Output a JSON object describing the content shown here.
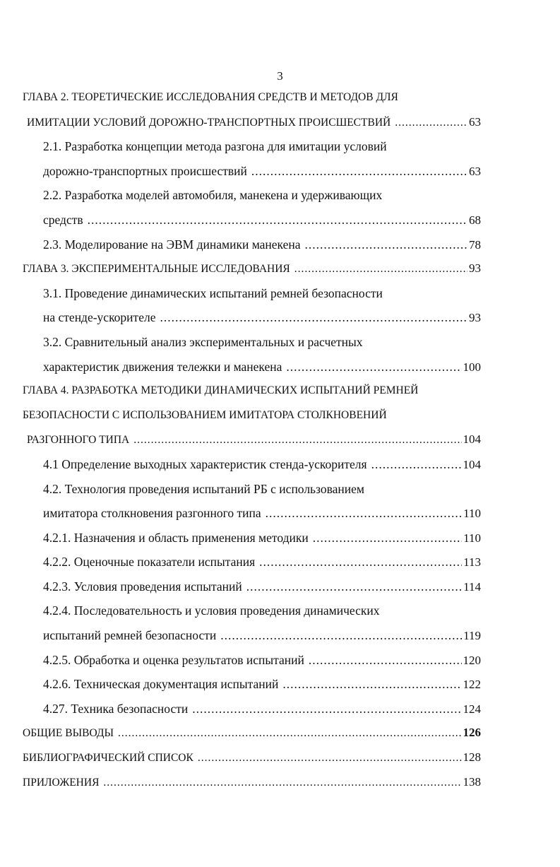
{
  "page_number": "3",
  "rows": [
    {
      "text": "ГЛАВА 2. ТЕОРЕТИЧЕСКИЕ ИССЛЕДОВАНИЯ СРЕДСТВ И МЕТОДОВ ДЛЯ",
      "level": "l0"
    },
    {
      "text": "ИМИТАЦИИ УСЛОВИЙ ДОРОЖНО-ТРАНСПОРТНЫХ ПРОИСШЕСТВИЙ",
      "page": "63",
      "level": "l0b"
    },
    {
      "text": "2.1. Разработка концепции метода разгона для имитации условий",
      "level": "l1"
    },
    {
      "text": "дорожно-транспортных происшествий",
      "page": "63",
      "level": "l1"
    },
    {
      "text": "2.2. Разработка моделей автомобиля, манекена и удерживающих",
      "level": "l1"
    },
    {
      "text": "средств",
      "page": "68",
      "level": "l1"
    },
    {
      "text": "2.3. Моделирование на ЭВМ динамики манекена",
      "page": "78",
      "level": "l1"
    },
    {
      "text": "ГЛАВА 3. ЭКСПЕРИМЕНТАЛЬНЫЕ ИССЛЕДОВАНИЯ",
      "page": "93",
      "level": "l0"
    },
    {
      "text": "3.1. Проведение динамических испытаний ремней безопасности",
      "level": "l1"
    },
    {
      "text": "на стенде-ускорителе",
      "page": "93",
      "level": "l1"
    },
    {
      "text": "3.2. Сравнительный анализ экспериментальных и расчетных",
      "level": "l1"
    },
    {
      "text": "характеристик движения тележки и манекена",
      "page": "100",
      "level": "l1"
    },
    {
      "text": "ГЛАВА 4. РАЗРАБОТКА МЕТОДИКИ ДИНАМИЧЕСКИХ ИСПЫТАНИЙ РЕМНЕЙ",
      "level": "l0"
    },
    {
      "text": "БЕЗОПАСНОСТИ С ИСПОЛЬЗОВАНИЕМ ИМИТАТОРА  СТОЛКНОВЕНИЙ",
      "level": "l0"
    },
    {
      "text": "РАЗГОННОГО ТИПА",
      "page": "104",
      "level": "l0b"
    },
    {
      "text": "4.1 Определение выходных характеристик стенда-ускорителя",
      "page": "104",
      "level": "l1"
    },
    {
      "text": "4.2. Технология проведения испытаний РБ с использованием",
      "level": "l1"
    },
    {
      "text": "имитатора столкновения разгонного типа",
      "page": "110",
      "level": "l1"
    },
    {
      "text": "4.2.1. Назначения и область применения методики",
      "page": "110",
      "level": "l1"
    },
    {
      "text": "4.2.2. Оценочные показатели испытания",
      "page": "113",
      "level": "l1"
    },
    {
      "text": "4.2.3. Условия проведения испытаний",
      "page": "114",
      "level": "l1"
    },
    {
      "text": "4.2.4. Последовательность и условия проведения динамических",
      "level": "l1"
    },
    {
      "text": "испытаний ремней безопасности",
      "page": "119",
      "level": "l1"
    },
    {
      "text": "4.2.5. Обработка и оценка результатов испытаний",
      "page": "120",
      "level": "l1"
    },
    {
      "text": "4.2.6. Техническая документация испытаний",
      "page": "122",
      "level": "l1"
    },
    {
      "text": "4.27. Техника безопасности",
      "page": "124",
      "level": "l1"
    },
    {
      "text": "ОБЩИЕ ВЫВОДЫ",
      "page": "126",
      "level": "l0",
      "bold_page": true
    },
    {
      "text": "БИБЛИОГРАФИЧЕСКИЙ СПИСОК",
      "page": "128",
      "level": "l0"
    },
    {
      "text": "ПРИЛОЖЕНИЯ",
      "page": "138",
      "level": "l0"
    }
  ]
}
